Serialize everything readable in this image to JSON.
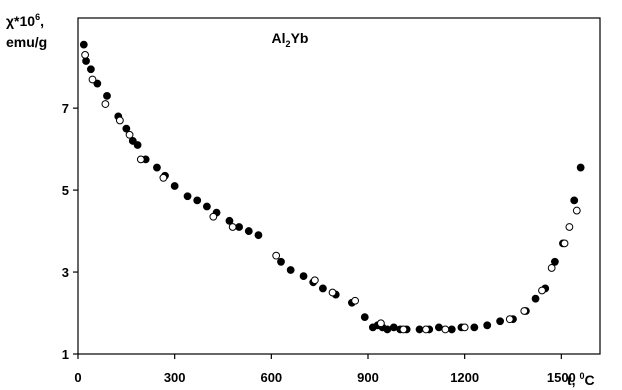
{
  "chart_data": {
    "type": "scatter",
    "title": "Al2Yb",
    "title_parts": {
      "main": "Al",
      "sub": "2",
      "tail": "Yb"
    },
    "ylabel_line1": {
      "main": "χ*10",
      "sup": "6",
      "tail": ","
    },
    "ylabel_line2": "emu/g",
    "xlabel": {
      "main": "t, ",
      "sup": "0",
      "tail": "C"
    },
    "xlim": [
      0,
      1620
    ],
    "ylim": [
      1,
      9.2
    ],
    "xticks": [
      0,
      300,
      600,
      900,
      1200,
      1500
    ],
    "yticks": [
      1,
      3,
      5,
      7
    ],
    "grid": false,
    "legend": "none",
    "series": [
      {
        "marker": "filled",
        "x": [
          18,
          25,
          40,
          60,
          90,
          125,
          150,
          170,
          185,
          210,
          245,
          270,
          300,
          340,
          370,
          400,
          430,
          470,
          500,
          530,
          560,
          630,
          660,
          700,
          730,
          760,
          800,
          850,
          890,
          915,
          930,
          945,
          960,
          980,
          1000,
          1020,
          1060,
          1090,
          1120,
          1160,
          1190,
          1230,
          1270,
          1310,
          1350,
          1390,
          1420,
          1450,
          1480,
          1505,
          1540,
          1560
        ],
        "y": [
          8.55,
          8.15,
          7.95,
          7.6,
          7.3,
          6.8,
          6.5,
          6.2,
          6.1,
          5.75,
          5.55,
          5.35,
          5.1,
          4.85,
          4.75,
          4.6,
          4.45,
          4.25,
          4.1,
          4.0,
          3.9,
          3.25,
          3.05,
          2.9,
          2.75,
          2.6,
          2.45,
          2.25,
          1.9,
          1.65,
          1.7,
          1.65,
          1.6,
          1.65,
          1.6,
          1.6,
          1.6,
          1.6,
          1.65,
          1.6,
          1.65,
          1.65,
          1.7,
          1.8,
          1.85,
          2.05,
          2.35,
          2.6,
          3.25,
          3.7,
          4.75,
          5.55
        ]
      },
      {
        "marker": "open",
        "x": [
          22,
          45,
          85,
          130,
          160,
          195,
          265,
          420,
          480,
          615,
          735,
          790,
          860,
          940,
          1010,
          1080,
          1140,
          1200,
          1340,
          1385,
          1440,
          1470,
          1510,
          1525,
          1548
        ],
        "y": [
          8.3,
          7.7,
          7.1,
          6.7,
          6.35,
          5.75,
          5.3,
          4.35,
          4.1,
          3.4,
          2.8,
          2.5,
          2.3,
          1.75,
          1.6,
          1.6,
          1.6,
          1.65,
          1.85,
          2.05,
          2.55,
          3.1,
          3.7,
          4.1,
          4.5
        ]
      }
    ]
  }
}
